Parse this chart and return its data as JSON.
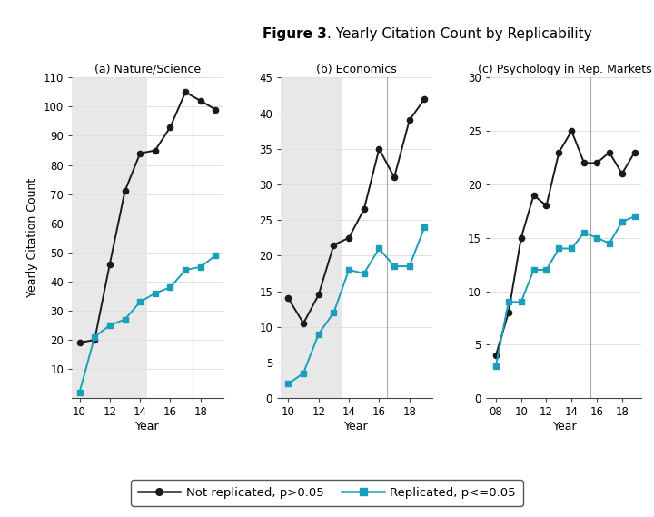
{
  "title_bold": "Figure 3",
  "title_rest": ". Yearly Citation Count by Replicability",
  "ylabel": "Yearly Citation Count",
  "background_color": "#ffffff",
  "panel_bg_color": "#e8e8e8",
  "grid_color": "#e0e0e0",
  "subplots": [
    {
      "title": "(a) Nature/Science",
      "xlabel": "Year",
      "xlim": [
        9.5,
        19.5
      ],
      "ylim": [
        0,
        110
      ],
      "yticks": [
        10,
        20,
        30,
        40,
        50,
        60,
        70,
        80,
        90,
        100,
        110
      ],
      "xticks": [
        10,
        12,
        14,
        16,
        18
      ],
      "xticklabels": [
        "10",
        "12",
        "14",
        "16",
        "18"
      ],
      "shading_xmin": 9.5,
      "shading_xmax": 14.5,
      "vline_x": 17.5,
      "not_replicated_x": [
        10,
        11,
        12,
        13,
        14,
        15,
        16,
        17,
        18,
        19
      ],
      "not_replicated_y": [
        19,
        20,
        46,
        71,
        84,
        85,
        93,
        105,
        102,
        99
      ],
      "replicated_x": [
        10,
        11,
        12,
        13,
        14,
        15,
        16,
        17,
        18,
        19
      ],
      "replicated_y": [
        2,
        21,
        25,
        27,
        33,
        36,
        38,
        44,
        45,
        49
      ]
    },
    {
      "title": "(b) Economics",
      "xlabel": "Year",
      "xlim": [
        9.5,
        19.5
      ],
      "ylim": [
        0,
        45
      ],
      "yticks": [
        0,
        5,
        10,
        15,
        20,
        25,
        30,
        35,
        40,
        45
      ],
      "xticks": [
        10,
        12,
        14,
        16,
        18
      ],
      "xticklabels": [
        "10",
        "12",
        "14",
        "16",
        "18"
      ],
      "shading_xmin": 9.5,
      "shading_xmax": 13.5,
      "vline_x": 16.5,
      "not_replicated_x": [
        10,
        11,
        12,
        13,
        14,
        15,
        16,
        17,
        18,
        19
      ],
      "not_replicated_y": [
        14,
        10.5,
        14.5,
        21.5,
        22.5,
        26.5,
        35,
        31,
        39,
        42
      ],
      "replicated_x": [
        10,
        11,
        12,
        13,
        14,
        15,
        16,
        17,
        18,
        19
      ],
      "replicated_y": [
        2,
        3.5,
        9,
        12,
        18,
        17.5,
        21,
        18.5,
        18.5,
        24
      ]
    },
    {
      "title": "(c) Psychology in Rep. Markets",
      "xlabel": "Year",
      "xlim": [
        7.5,
        19.5
      ],
      "ylim": [
        0,
        30
      ],
      "yticks": [
        0,
        5,
        10,
        15,
        20,
        25,
        30
      ],
      "xticks": [
        8,
        10,
        12,
        14,
        16,
        18
      ],
      "xticklabels": [
        "08",
        "10",
        "12",
        "14",
        "16",
        "18"
      ],
      "shading_xmin": null,
      "shading_xmax": null,
      "vline_x": 15.5,
      "not_replicated_x": [
        8,
        9,
        10,
        11,
        12,
        13,
        14,
        15,
        16,
        17,
        18,
        19
      ],
      "not_replicated_y": [
        4,
        8,
        15,
        19,
        18,
        23,
        25,
        22,
        22,
        23,
        21,
        23
      ],
      "replicated_x": [
        8,
        9,
        10,
        11,
        12,
        13,
        14,
        15,
        16,
        17,
        18,
        19
      ],
      "replicated_y": [
        3,
        9,
        9,
        12,
        12,
        14,
        14,
        15.5,
        15,
        14.5,
        16.5,
        17
      ]
    }
  ],
  "not_rep_color": "#1a1a1a",
  "rep_color": "#1a9fba",
  "line_width": 1.4,
  "marker_size": 4.5,
  "legend_labels": [
    "Not replicated, p>0.05",
    "Replicated, p<=0.05"
  ]
}
